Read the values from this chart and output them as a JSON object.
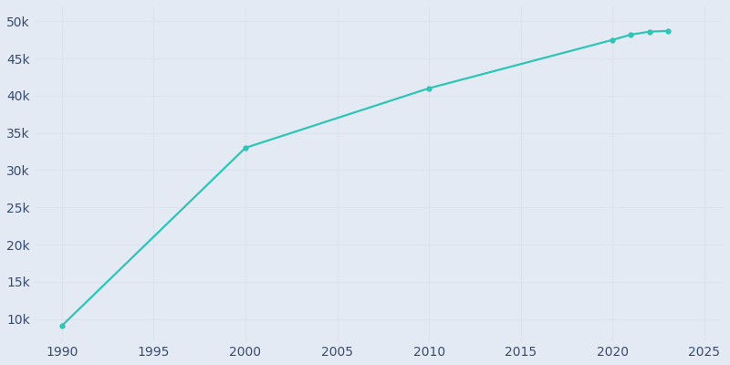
{
  "years": [
    1990,
    2000,
    2010,
    2020,
    2021,
    2022,
    2023
  ],
  "population": [
    9100,
    33000,
    41000,
    47500,
    48200,
    48600,
    48700
  ],
  "line_color": "#2ec4b6",
  "marker_style": "o",
  "marker_size": 3.5,
  "background_color": "#e4eaf3",
  "grid_color": "#cdd5e4",
  "tick_color": "#374c6e",
  "xlim": [
    1988.5,
    2026
  ],
  "ylim": [
    7000,
    52000
  ],
  "xticks": [
    1990,
    1995,
    2000,
    2005,
    2010,
    2015,
    2020,
    2025
  ],
  "yticks": [
    10000,
    15000,
    20000,
    25000,
    30000,
    35000,
    40000,
    45000,
    50000
  ],
  "figsize": [
    8.0,
    4.0
  ],
  "dpi": 100
}
